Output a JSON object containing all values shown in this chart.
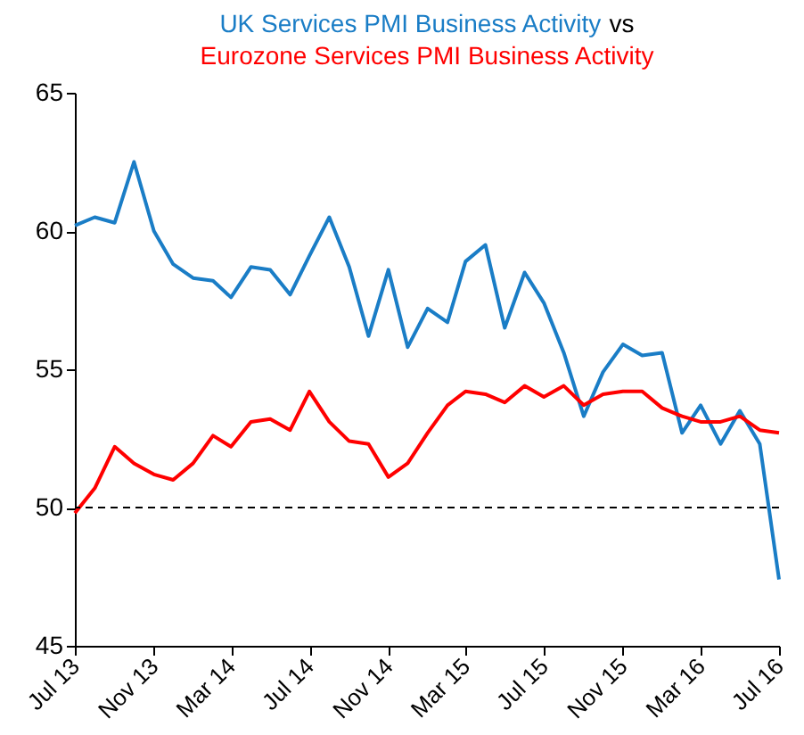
{
  "chart_data": {
    "type": "line",
    "annotations": [
      "vs"
    ],
    "x": [
      "2013-07",
      "2013-08",
      "2013-09",
      "2013-10",
      "2013-11",
      "2013-12",
      "2014-01",
      "2014-02",
      "2014-03",
      "2014-04",
      "2014-05",
      "2014-06",
      "2014-07",
      "2014-08",
      "2014-09",
      "2014-10",
      "2014-11",
      "2014-12",
      "2015-01",
      "2015-02",
      "2015-03",
      "2015-04",
      "2015-05",
      "2015-06",
      "2015-07",
      "2015-08",
      "2015-09",
      "2015-10",
      "2015-11",
      "2015-12",
      "2016-01",
      "2016-02",
      "2016-03",
      "2016-04",
      "2016-05",
      "2016-06",
      "2016-07"
    ],
    "series": [
      {
        "name": "UK Services PMI Business Activity",
        "color": "#1a7dc6",
        "values": [
          60.2,
          60.5,
          60.3,
          62.5,
          60.0,
          58.8,
          58.3,
          58.2,
          57.6,
          58.7,
          58.6,
          57.7,
          59.1,
          60.5,
          58.7,
          56.2,
          58.6,
          55.8,
          57.2,
          56.7,
          58.9,
          59.5,
          56.5,
          58.5,
          57.4,
          55.6,
          53.3,
          54.9,
          55.9,
          55.5,
          55.6,
          52.7,
          53.7,
          52.3,
          53.5,
          52.3,
          47.4
        ]
      },
      {
        "name": "Eurozone Services PMI Business Activity",
        "color": "#ff0000",
        "values": [
          49.8,
          50.7,
          52.2,
          51.6,
          51.2,
          51.0,
          51.6,
          52.6,
          52.2,
          53.1,
          53.2,
          52.8,
          54.2,
          53.1,
          52.4,
          52.3,
          51.1,
          51.6,
          52.7,
          53.7,
          54.2,
          54.1,
          53.8,
          54.4,
          54.0,
          54.4,
          53.7,
          54.1,
          54.2,
          54.2,
          53.6,
          53.3,
          53.1,
          53.1,
          53.3,
          52.8,
          52.7
        ]
      }
    ],
    "xlim": [
      "2013-07",
      "2016-07"
    ],
    "xticks": [
      {
        "value": "2013-07",
        "label": "Jul 13"
      },
      {
        "value": "2013-11",
        "label": "Nov 13"
      },
      {
        "value": "2014-03",
        "label": "Mar 14"
      },
      {
        "value": "2014-07",
        "label": "Jul 14"
      },
      {
        "value": "2014-11",
        "label": "Nov 14"
      },
      {
        "value": "2015-03",
        "label": "Mar 15"
      },
      {
        "value": "2015-07",
        "label": "Jul 15"
      },
      {
        "value": "2015-11",
        "label": "Nov 15"
      },
      {
        "value": "2016-03",
        "label": "Mar 16"
      },
      {
        "value": "2016-07",
        "label": "Jul 16"
      }
    ],
    "ylim": [
      45,
      65
    ],
    "yticks": [
      45,
      50,
      55,
      60,
      65
    ],
    "grid": false,
    "ref_lines": [
      {
        "axis": "y",
        "value": 50,
        "color": "#000000",
        "line_style": "dashed"
      }
    ],
    "line_style": "solid",
    "marker": "none"
  }
}
